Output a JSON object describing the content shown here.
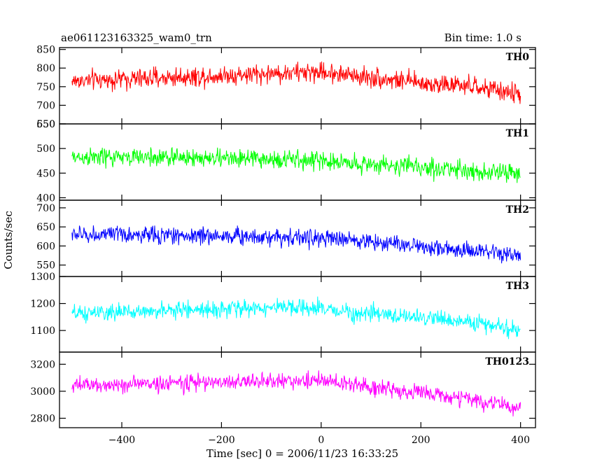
{
  "chart_data": {
    "type": "line",
    "title": "ae061123163325_wam0_trn",
    "subtitle": "Bin time: 1.0 s",
    "xlabel": "Time [sec] 0 = 2006/11/23 16:33:25",
    "ylabel": "Counts/sec",
    "xlim": [
      -525,
      430
    ],
    "x_range_data": [
      -500,
      400
    ],
    "x_ticks": [
      -400,
      -200,
      0,
      200,
      400
    ],
    "x_tick_labels": [
      "−400",
      "−200",
      "0",
      "200",
      "400"
    ],
    "grid": false,
    "series": [
      {
        "name": "TH0",
        "color": "#ff0000",
        "ylim": [
          650,
          855
        ],
        "yticks": [
          650,
          700,
          750,
          800,
          850
        ],
        "trend": [
          [
            -500,
            765
          ],
          [
            -300,
            775
          ],
          [
            -100,
            785
          ],
          [
            0,
            790
          ],
          [
            100,
            775
          ],
          [
            200,
            760
          ],
          [
            300,
            750
          ],
          [
            400,
            730
          ]
        ],
        "noise_amplitude": 35,
        "values_approx_range": [
          655,
          855
        ]
      },
      {
        "name": "TH1",
        "color": "#00ff00",
        "ylim": [
          395,
          550
        ],
        "yticks": [
          400,
          450,
          500,
          550
        ],
        "trend": [
          [
            -500,
            482
          ],
          [
            -300,
            482
          ],
          [
            -100,
            478
          ],
          [
            0,
            475
          ],
          [
            100,
            468
          ],
          [
            200,
            462
          ],
          [
            300,
            455
          ],
          [
            400,
            448
          ]
        ],
        "noise_amplitude": 25,
        "values_approx_range": [
          400,
          540
        ]
      },
      {
        "name": "TH2",
        "color": "#0000ff",
        "ylim": [
          520,
          720
        ],
        "yticks": [
          550,
          600,
          650,
          700
        ],
        "trend": [
          [
            -500,
            630
          ],
          [
            -300,
            628
          ],
          [
            -100,
            625
          ],
          [
            0,
            620
          ],
          [
            100,
            612
          ],
          [
            200,
            600
          ],
          [
            300,
            585
          ],
          [
            400,
            575
          ]
        ],
        "noise_amplitude": 30,
        "values_approx_range": [
          530,
          715
        ]
      },
      {
        "name": "TH3",
        "color": "#00ffff",
        "ylim": [
          1020,
          1300
        ],
        "yticks": [
          1100,
          1200,
          1300
        ],
        "trend": [
          [
            -500,
            1160
          ],
          [
            -300,
            1175
          ],
          [
            -100,
            1185
          ],
          [
            0,
            1180
          ],
          [
            100,
            1160
          ],
          [
            200,
            1150
          ],
          [
            300,
            1130
          ],
          [
            400,
            1100
          ]
        ],
        "noise_amplitude": 40,
        "values_approx_range": [
          1040,
          1290
        ]
      },
      {
        "name": "TH0123",
        "color": "#ff00ff",
        "ylim": [
          2730,
          3290
        ],
        "yticks": [
          2800,
          3000,
          3200
        ],
        "trend": [
          [
            -500,
            3040
          ],
          [
            -300,
            3060
          ],
          [
            -100,
            3075
          ],
          [
            0,
            3080
          ],
          [
            100,
            3030
          ],
          [
            200,
            2990
          ],
          [
            300,
            2940
          ],
          [
            400,
            2870
          ]
        ],
        "noise_amplitude": 80,
        "values_approx_range": [
          2760,
          3260
        ]
      }
    ]
  }
}
